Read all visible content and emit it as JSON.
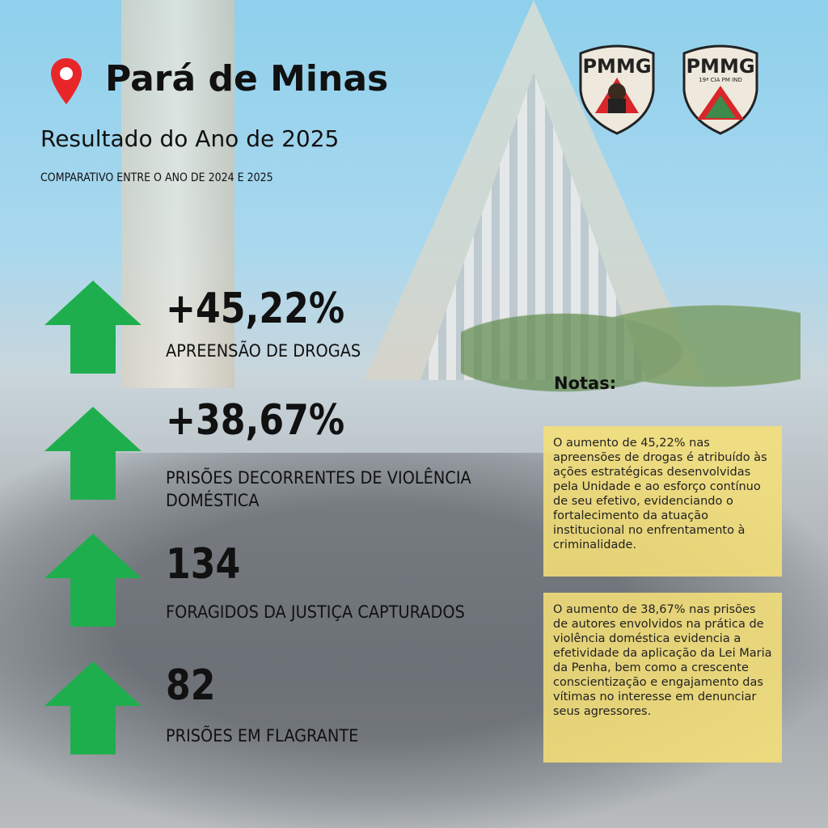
{
  "header": {
    "city": "Pará de Minas",
    "subtitle": "Resultado do Ano de 2025",
    "comparison": "COMPARATIVO ENTRE O ANO DE 2024 E 2025",
    "icon": "map-pin-icon",
    "pin_color": "#e8262a"
  },
  "logos": [
    {
      "text": "PMMG",
      "subtext": ""
    },
    {
      "text": "PMMG",
      "subtext": "19ª CIA PM IND"
    }
  ],
  "stats": [
    {
      "value": "+45,22%",
      "label": "APREENSÃO DE DROGAS",
      "trend": "up"
    },
    {
      "value": "+38,67%",
      "label": "PRISÕES DECORRENTES DE VIOLÊNCIA DOMÉSTICA",
      "trend": "up"
    },
    {
      "value": "134",
      "label": "FORAGIDOS DA JUSTIÇA CAPTURADOS",
      "trend": "up"
    },
    {
      "value": "82",
      "label": "PRISÕES EM FLAGRANTE",
      "trend": "up"
    }
  ],
  "arrow_color": "#1fae4e",
  "notes": {
    "heading": "Notas:",
    "items": [
      "O aumento de 45,22% nas apreensões de drogas é atribuído às ações estratégicas desenvolvidas pela Unidade e ao esforço contínuo de seu efetivo, evidenciando o fortalecimento da atuação institucional no enfrentamento à criminalidade.",
      "O aumento de 38,67% nas prisões de autores envolvidos na prática de violência doméstica evidencia a efetividade da aplicação da Lei Maria da Penha, bem como a crescente conscientização e engajamento das vítimas no interesse em denunciar seus agressores."
    ]
  }
}
